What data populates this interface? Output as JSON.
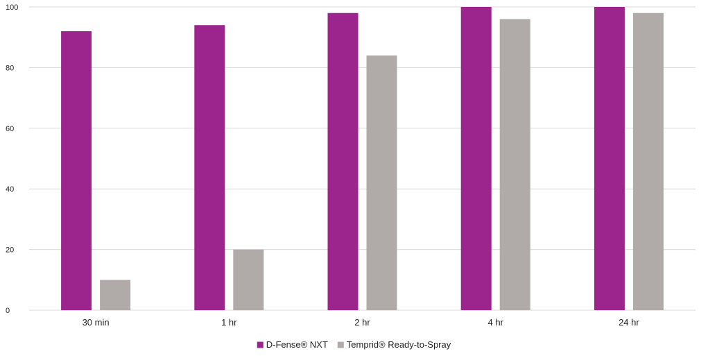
{
  "chart_data": {
    "type": "bar",
    "categories": [
      "30 min",
      "1 hr",
      "2 hr",
      "4 hr",
      "24 hr"
    ],
    "series": [
      {
        "name": "D-Fense® NXT",
        "color": "#9b248d",
        "values": [
          92,
          94,
          98,
          100,
          100
        ]
      },
      {
        "name": "Temprid® Ready-to-Spray",
        "color": "#b0aba9",
        "values": [
          10,
          20,
          84,
          96,
          98
        ]
      }
    ],
    "yticks": [
      0,
      20,
      40,
      60,
      80,
      100
    ],
    "ylim": [
      0,
      100
    ],
    "grid": true,
    "gridline_color": "#d9d9d9",
    "legend_position": "bottom-center",
    "title": "",
    "xlabel": "",
    "ylabel": ""
  }
}
